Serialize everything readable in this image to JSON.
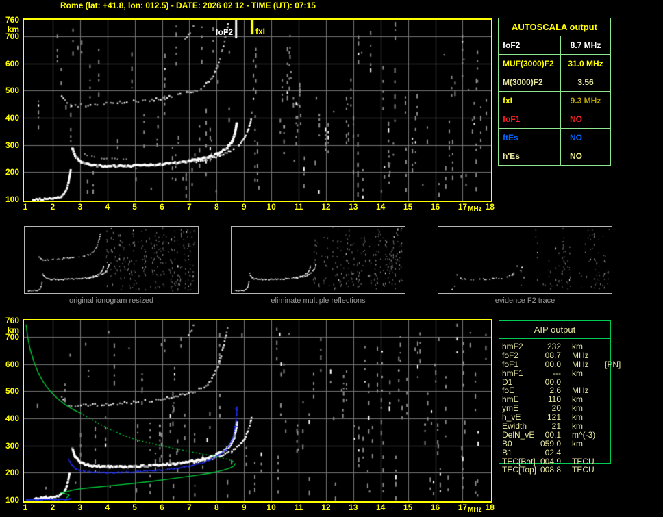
{
  "title": "Rome (lat: +41.8, lon: 012.5) - DATE: 2026 02 12 - TIME (UT): 07:15",
  "colors": {
    "background": "#000000",
    "axis_yellow": "#ffff00",
    "grid_gray": "#767676",
    "trace_white": "#ffffff",
    "trace_blue": "#2233ff",
    "profile_green": "#00c838",
    "autoscala_border": "#8ee68e",
    "aip_border": "#00cc55",
    "khaki_text": "#e6e6a0",
    "caption_gray": "#9a9a9a"
  },
  "autoscala": {
    "title": "AUTOSCALA output",
    "rows": [
      {
        "label": "foF2",
        "value": "8.7 MHz",
        "label_color": "#ffffff",
        "value_color": "#ffffff",
        "value_align": "center"
      },
      {
        "label": "MUF(3000)F2",
        "value": "31.0 MHz",
        "label_color": "#ffff00",
        "value_color": "#ffff00",
        "value_align": "center"
      },
      {
        "label": "M(3000)F2",
        "value": "3.56",
        "label_color": "#e8e8a2",
        "value_color": "#e8e8a2",
        "value_align": "center"
      },
      {
        "label": "fxI",
        "value": "9.3 MHz",
        "label_color": "#ffff00",
        "value_color": "#b8a500",
        "value_align": "center"
      },
      {
        "label": "foF1",
        "value": "NO",
        "label_color": "#ff2222",
        "value_color": "#ff2222",
        "value_align": "left"
      },
      {
        "label": "ftEs",
        "value": "NO",
        "label_color": "#0066ff",
        "value_color": "#0066ff",
        "value_align": "left"
      },
      {
        "label": "h'Es",
        "value": "NO",
        "label_color": "#e8e8a2",
        "value_color": "#eeee88",
        "value_align": "left"
      }
    ]
  },
  "aip": {
    "title": "AIP output",
    "rows": [
      {
        "label": "hmF2",
        "value": "232",
        "unit": "km",
        "extra": ""
      },
      {
        "label": "foF2",
        "value": "08.7",
        "unit": "MHz",
        "extra": ""
      },
      {
        "label": "foF1",
        "value": "00.0",
        "unit": "MHz",
        "extra": "[PN]"
      },
      {
        "label": "hmF1",
        "value": "---",
        "unit": "km",
        "extra": ""
      },
      {
        "label": "D1",
        "value": "00.0",
        "unit": "",
        "extra": ""
      },
      {
        "label": "foE",
        "value": "2.6",
        "unit": "MHz",
        "extra": ""
      },
      {
        "label": "hmE",
        "value": "110",
        "unit": "km",
        "extra": ""
      },
      {
        "label": "ymE",
        "value": "20",
        "unit": "km",
        "extra": ""
      },
      {
        "label": "h_vE",
        "value": "121",
        "unit": "km",
        "extra": ""
      },
      {
        "label": "Ewidth",
        "value": "21",
        "unit": "km",
        "extra": ""
      },
      {
        "label": "DelN_vE",
        "value": "00.1",
        "unit": "m^(-3)",
        "extra": ""
      },
      {
        "label": "B0",
        "value": "059.0",
        "unit": "km",
        "extra": ""
      },
      {
        "label": "B1",
        "value": "02.4",
        "unit": "",
        "extra": ""
      },
      {
        "label": "TEC[Bot]",
        "value": "004.9",
        "unit": "TECU",
        "extra": ""
      },
      {
        "label": "TEC[Top]",
        "value": "008.8",
        "unit": "TECU",
        "extra": ""
      }
    ]
  },
  "thumbnails": {
    "items": [
      {
        "caption": "original ionogram resized"
      },
      {
        "caption": "eliminate multiple reflections"
      },
      {
        "caption": "evidence F2 trace"
      }
    ]
  },
  "chart_data": [
    {
      "id": "ionogram_top",
      "type": "scatter",
      "title": "",
      "xlabel": "MHz",
      "ylabel": "km",
      "xlim": [
        1,
        18
      ],
      "ylim": [
        100,
        760
      ],
      "grid": true,
      "x_ticks": [
        1,
        2,
        3,
        4,
        5,
        6,
        7,
        8,
        9,
        10,
        11,
        12,
        13,
        14,
        15,
        16,
        17,
        18
      ],
      "y_ticks": [
        760,
        700,
        600,
        500,
        400,
        300,
        200,
        100
      ],
      "markers": [
        {
          "label": "foF2",
          "freq_mhz": 8.7,
          "color": "#ffffff"
        },
        {
          "label": "fxI",
          "freq_mhz": 9.3,
          "color": "#ffff00"
        }
      ],
      "traces": {
        "e_layer": [
          [
            1.25,
            103
          ],
          [
            1.55,
            104
          ],
          [
            1.85,
            106
          ],
          [
            2.1,
            108
          ],
          [
            2.25,
            113
          ],
          [
            2.38,
            123
          ],
          [
            2.48,
            142
          ],
          [
            2.55,
            168
          ],
          [
            2.6,
            196
          ],
          [
            2.63,
            216
          ]
        ],
        "f_layer": [
          [
            2.68,
            292
          ],
          [
            2.78,
            265
          ],
          [
            2.92,
            247
          ],
          [
            3.1,
            237
          ],
          [
            3.35,
            230
          ],
          [
            3.7,
            227
          ],
          [
            4.1,
            226
          ],
          [
            4.6,
            226
          ],
          [
            5.1,
            228
          ],
          [
            5.6,
            230
          ],
          [
            6.1,
            234
          ],
          [
            6.6,
            239
          ],
          [
            7.0,
            245
          ],
          [
            7.4,
            253
          ],
          [
            7.8,
            264
          ],
          [
            8.1,
            278
          ],
          [
            8.35,
            295
          ],
          [
            8.5,
            313
          ],
          [
            8.6,
            336
          ],
          [
            8.66,
            362
          ],
          [
            8.7,
            392
          ]
        ],
        "x_branch": [
          [
            7.15,
            240
          ],
          [
            7.55,
            248
          ],
          [
            7.95,
            259
          ],
          [
            8.35,
            274
          ],
          [
            8.65,
            291
          ],
          [
            8.85,
            308
          ],
          [
            9.0,
            330
          ],
          [
            9.12,
            356
          ],
          [
            9.2,
            384
          ],
          [
            9.26,
            412
          ]
        ],
        "second_hop": [
          [
            2.3,
            480
          ],
          [
            2.42,
            463
          ],
          [
            2.58,
            453
          ],
          [
            2.8,
            448
          ],
          [
            3.1,
            449
          ],
          [
            3.6,
            452
          ],
          [
            4.1,
            456
          ],
          [
            4.6,
            459
          ],
          [
            5.1,
            464
          ],
          [
            5.6,
            469
          ],
          [
            6.0,
            475
          ],
          [
            6.4,
            482
          ],
          [
            6.8,
            490
          ],
          [
            7.1,
            499
          ],
          [
            7.4,
            512
          ],
          [
            7.65,
            531
          ],
          [
            7.85,
            557
          ],
          [
            8.0,
            590
          ],
          [
            8.12,
            628
          ],
          [
            8.22,
            668
          ],
          [
            8.32,
            712
          ],
          [
            8.4,
            752
          ]
        ],
        "streak": [
          [
            6.82,
            688
          ],
          [
            7.0,
            718
          ],
          [
            7.18,
            752
          ]
        ],
        "faint_arc": [
          [
            3.15,
            268
          ],
          [
            3.5,
            258
          ],
          [
            3.95,
            252
          ],
          [
            4.45,
            249
          ],
          [
            4.9,
            249
          ]
        ]
      }
    },
    {
      "id": "ionogram_bottom",
      "type": "scatter",
      "title": "",
      "xlabel": "MHz",
      "ylabel": "km",
      "xlim": [
        1,
        18
      ],
      "ylim": [
        100,
        760
      ],
      "grid": true,
      "x_ticks": [
        1,
        2,
        3,
        4,
        5,
        6,
        7,
        8,
        9,
        10,
        11,
        12,
        13,
        14,
        15,
        16,
        17,
        18
      ],
      "y_ticks": [
        760,
        700,
        600,
        500,
        400,
        300,
        200,
        100
      ],
      "traces": {
        "e_layer": [
          [
            1.3,
            110
          ],
          [
            1.6,
            111
          ],
          [
            1.9,
            113
          ],
          [
            2.12,
            116
          ],
          [
            2.27,
            123
          ],
          [
            2.4,
            136
          ],
          [
            2.49,
            157
          ],
          [
            2.55,
            183
          ],
          [
            2.59,
            207
          ]
        ],
        "f_layer": [
          [
            2.68,
            292
          ],
          [
            2.78,
            265
          ],
          [
            2.92,
            247
          ],
          [
            3.1,
            237
          ],
          [
            3.35,
            230
          ],
          [
            3.7,
            227
          ],
          [
            4.1,
            226
          ],
          [
            4.6,
            226
          ],
          [
            5.1,
            228
          ],
          [
            5.6,
            230
          ],
          [
            6.1,
            234
          ],
          [
            6.6,
            239
          ],
          [
            7.0,
            245
          ],
          [
            7.4,
            253
          ],
          [
            7.8,
            264
          ],
          [
            8.1,
            278
          ],
          [
            8.35,
            295
          ],
          [
            8.5,
            313
          ],
          [
            8.6,
            336
          ],
          [
            8.66,
            362
          ],
          [
            8.7,
            392
          ]
        ],
        "x_branch": [
          [
            7.15,
            240
          ],
          [
            7.55,
            248
          ],
          [
            7.95,
            259
          ],
          [
            8.35,
            274
          ],
          [
            8.65,
            291
          ],
          [
            8.85,
            308
          ],
          [
            9.0,
            330
          ],
          [
            9.12,
            356
          ],
          [
            9.2,
            384
          ],
          [
            9.26,
            412
          ]
        ],
        "second_hop": [
          [
            2.3,
            480
          ],
          [
            2.42,
            463
          ],
          [
            2.58,
            453
          ],
          [
            2.8,
            448
          ],
          [
            3.1,
            449
          ],
          [
            3.6,
            452
          ],
          [
            4.1,
            456
          ],
          [
            4.6,
            459
          ],
          [
            5.1,
            464
          ],
          [
            5.6,
            469
          ],
          [
            6.0,
            475
          ],
          [
            6.4,
            482
          ],
          [
            6.8,
            490
          ],
          [
            7.1,
            499
          ],
          [
            7.4,
            512
          ],
          [
            7.65,
            531
          ],
          [
            7.85,
            557
          ],
          [
            8.0,
            590
          ],
          [
            8.12,
            628
          ],
          [
            8.22,
            668
          ],
          [
            8.32,
            712
          ],
          [
            8.4,
            752
          ]
        ],
        "streak": [
          [
            6.82,
            688
          ],
          [
            7.0,
            718
          ],
          [
            7.18,
            752
          ]
        ],
        "blue_e": [
          [
            1.02,
            103
          ],
          [
            1.4,
            103
          ],
          [
            1.8,
            104
          ],
          [
            2.2,
            104
          ],
          [
            2.55,
            105
          ],
          [
            2.68,
            106
          ]
        ],
        "blue_f": [
          [
            2.56,
            250
          ],
          [
            2.7,
            227
          ],
          [
            2.88,
            214
          ],
          [
            3.15,
            207
          ],
          [
            3.55,
            204
          ],
          [
            4.0,
            203
          ],
          [
            4.5,
            204
          ],
          [
            5.0,
            206
          ],
          [
            5.5,
            209
          ],
          [
            6.0,
            213
          ],
          [
            6.5,
            219
          ],
          [
            7.0,
            227
          ],
          [
            7.4,
            237
          ],
          [
            7.75,
            250
          ],
          [
            8.05,
            266
          ],
          [
            8.3,
            286
          ],
          [
            8.47,
            308
          ],
          [
            8.58,
            334
          ],
          [
            8.65,
            366
          ],
          [
            8.7,
            405
          ],
          [
            8.72,
            448
          ]
        ],
        "blue_marks": [
          [
            8.69,
            372
          ],
          [
            8.71,
            436
          ]
        ],
        "profile_topside_solid": [
          [
            1.03,
            745
          ],
          [
            1.08,
            702
          ],
          [
            1.17,
            656
          ],
          [
            1.3,
            612
          ],
          [
            1.46,
            570
          ],
          [
            1.66,
            533
          ],
          [
            1.9,
            501
          ],
          [
            2.16,
            474
          ],
          [
            2.45,
            451
          ],
          [
            2.75,
            432
          ],
          [
            3.0,
            420
          ]
        ],
        "profile_topside_dotted": [
          [
            3.0,
            420
          ],
          [
            3.35,
            400
          ],
          [
            3.7,
            380
          ],
          [
            4.0,
            364
          ],
          [
            4.5,
            341
          ],
          [
            5.0,
            323
          ],
          [
            5.5,
            310
          ],
          [
            6.0,
            299
          ],
          [
            6.5,
            288
          ],
          [
            7.0,
            278
          ],
          [
            7.5,
            268
          ],
          [
            8.0,
            259
          ],
          [
            8.3,
            252
          ],
          [
            8.5,
            246
          ],
          [
            8.62,
            240
          ],
          [
            8.68,
            234
          ]
        ],
        "profile_bottomside": [
          [
            8.68,
            234
          ],
          [
            8.63,
            225
          ],
          [
            8.48,
            217
          ],
          [
            8.2,
            208
          ],
          [
            7.8,
            199
          ],
          [
            7.3,
            191
          ],
          [
            6.8,
            184
          ],
          [
            6.2,
            176
          ],
          [
            5.6,
            168
          ],
          [
            5.0,
            161
          ],
          [
            4.4,
            155
          ],
          [
            3.8,
            149
          ],
          [
            3.3,
            144
          ],
          [
            2.95,
            140
          ],
          [
            2.72,
            136
          ],
          [
            2.63,
            133
          ],
          [
            2.45,
            130
          ],
          [
            2.32,
            127
          ],
          [
            2.45,
            123
          ],
          [
            2.58,
            120
          ],
          [
            2.6,
            115
          ],
          [
            2.54,
            110
          ],
          [
            2.5,
            107
          ]
        ]
      },
      "profile_values": {
        "hmF2_km": 232,
        "foF2_mhz": 8.7,
        "foE_mhz": 2.6,
        "hmE_km": 110
      }
    }
  ]
}
